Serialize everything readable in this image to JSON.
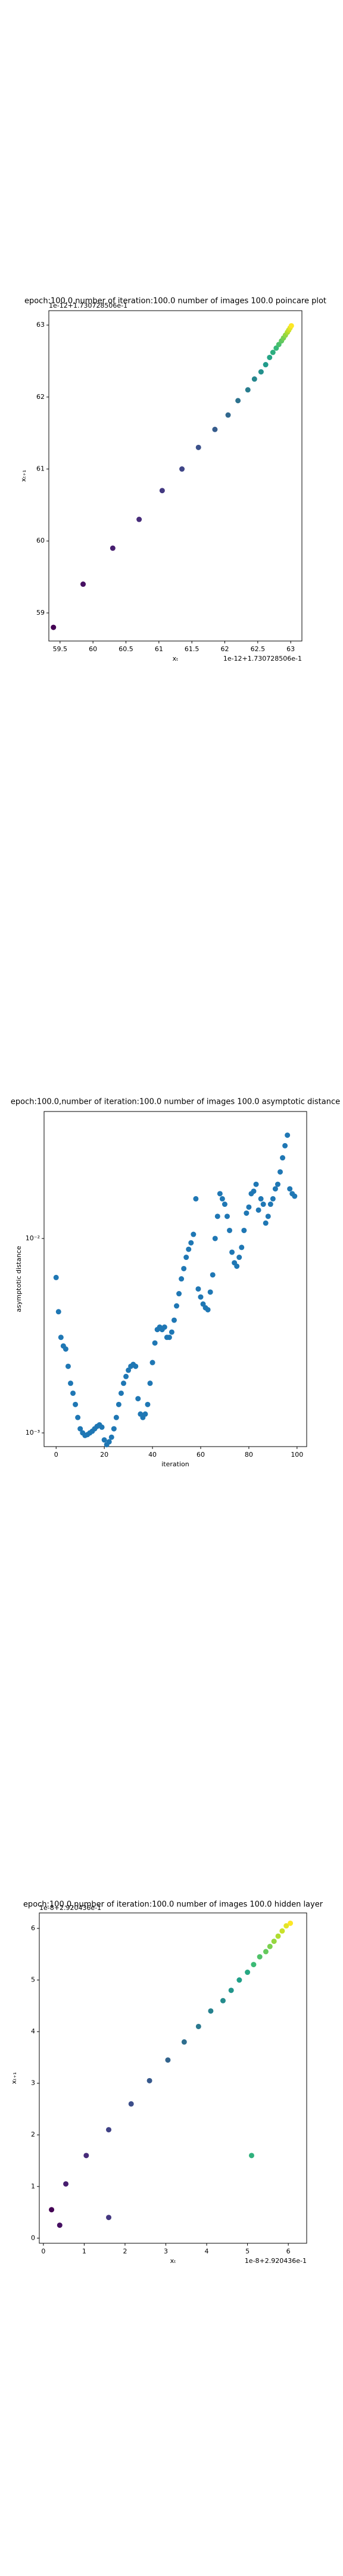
{
  "chart_data": [
    {
      "type": "scatter",
      "title": "epoch:100.0,number of iteration:100.0 number of images 100.0 poincare plot",
      "xlabel": "xₜ",
      "ylabel": "xₜ₊₁",
      "x_offset": "1e-12+1.730728506e-1",
      "y_offset": "1e-12+1.730728506e-1",
      "colormap": "viridis",
      "x": [
        59.4,
        59.85,
        60.3,
        60.7,
        61.05,
        61.35,
        61.6,
        61.85,
        62.05,
        62.2,
        62.35,
        62.45,
        62.55,
        62.62,
        62.68,
        62.73,
        62.78,
        62.82,
        62.86,
        62.89,
        62.92,
        62.95,
        62.97,
        62.99,
        63.01
      ],
      "values": [
        58.8,
        59.4,
        59.9,
        60.3,
        60.7,
        61.0,
        61.3,
        61.55,
        61.75,
        61.95,
        62.1,
        62.25,
        62.35,
        62.45,
        62.55,
        62.62,
        62.68,
        62.73,
        62.78,
        62.82,
        62.86,
        62.9,
        62.93,
        62.96,
        62.99
      ],
      "xlim": [
        59.33,
        63.17
      ],
      "ylim": [
        58.61,
        63.2
      ],
      "xticks": [
        59.5,
        60.0,
        60.5,
        61.0,
        61.5,
        62.0,
        62.5,
        63.0
      ],
      "yticks": [
        59,
        60,
        61,
        62,
        63
      ]
    },
    {
      "type": "scatter",
      "title": "epoch:100.0,number of iteration:100.0  number of images 100.0 asymptotic distance",
      "xlabel": "iteration",
      "ylabel": "asymptotic distance",
      "color": "#1f77b4",
      "ylog": true,
      "x": [
        0,
        1,
        2,
        3,
        4,
        5,
        6,
        7,
        8,
        9,
        10,
        11,
        12,
        13,
        14,
        15,
        16,
        17,
        18,
        19,
        20,
        21,
        22,
        23,
        24,
        25,
        26,
        27,
        28,
        29,
        30,
        31,
        32,
        33,
        34,
        35,
        36,
        37,
        38,
        39,
        40,
        41,
        42,
        43,
        44,
        45,
        46,
        47,
        48,
        49,
        50,
        51,
        52,
        53,
        54,
        55,
        56,
        57,
        58,
        59,
        60,
        61,
        62,
        63,
        64,
        65,
        66,
        67,
        68,
        69,
        70,
        71,
        72,
        73,
        74,
        75,
        76,
        77,
        78,
        79,
        80,
        81,
        82,
        83,
        84,
        85,
        86,
        87,
        88,
        89,
        90,
        91,
        92,
        93,
        94,
        95,
        96,
        97,
        98,
        99
      ],
      "values": [
        0.0063,
        0.0042,
        0.0031,
        0.0028,
        0.0027,
        0.0022,
        0.0018,
        0.0016,
        0.0014,
        0.0012,
        0.00105,
        0.001,
        0.00097,
        0.00098,
        0.001,
        0.00102,
        0.00105,
        0.00108,
        0.0011,
        0.00107,
        0.00092,
        0.00087,
        0.0009,
        0.00095,
        0.00105,
        0.0012,
        0.0014,
        0.0016,
        0.0018,
        0.00195,
        0.0021,
        0.0022,
        0.00225,
        0.0022,
        0.0015,
        0.00125,
        0.0012,
        0.00125,
        0.0014,
        0.0018,
        0.0023,
        0.0029,
        0.0034,
        0.0035,
        0.0034,
        0.0035,
        0.0031,
        0.0031,
        0.0033,
        0.0038,
        0.0045,
        0.0052,
        0.0062,
        0.007,
        0.008,
        0.0088,
        0.0095,
        0.0105,
        0.016,
        0.0055,
        0.005,
        0.0046,
        0.0044,
        0.0043,
        0.0053,
        0.0065,
        0.01,
        0.013,
        0.017,
        0.016,
        0.015,
        0.013,
        0.011,
        0.0085,
        0.0075,
        0.0072,
        0.008,
        0.009,
        0.011,
        0.0135,
        0.0145,
        0.017,
        0.0175,
        0.019,
        0.014,
        0.016,
        0.015,
        0.012,
        0.013,
        0.015,
        0.016,
        0.018,
        0.019,
        0.022,
        0.026,
        0.03,
        0.034,
        0.018,
        0.017,
        0.0165
      ],
      "xlim": [
        -5,
        104
      ],
      "ylim": [
        0.00085,
        0.045
      ],
      "xticks": [
        0,
        20,
        40,
        60,
        80,
        100
      ],
      "yticks": [
        {
          "value": 0.001,
          "label": "10⁻³"
        },
        {
          "value": 0.01,
          "label": "10⁻²"
        }
      ]
    },
    {
      "type": "scatter",
      "title": "epoch:100.0,number of iteration:100.0  number of images 100.0 hidden layer",
      "xlabel": "xₜ",
      "ylabel": "xₜ₊₁",
      "x_offset": "1e-8+2.920436e-1",
      "y_offset": "1e-8+2.920436e-1",
      "colormap": "viridis",
      "x": [
        0.2,
        0.4,
        0.55,
        1.05,
        1.6,
        1.6,
        2.15,
        2.6,
        3.05,
        3.45,
        3.8,
        4.1,
        4.4,
        4.6,
        4.8,
        5.0,
        5.1,
        5.15,
        5.3,
        5.45,
        5.55,
        5.65,
        5.75,
        5.85,
        5.95,
        6.05
      ],
      "values": [
        0.55,
        0.25,
        1.05,
        1.6,
        0.4,
        2.1,
        2.6,
        3.05,
        3.45,
        3.8,
        4.1,
        4.4,
        4.6,
        4.8,
        5.0,
        5.15,
        1.6,
        5.3,
        5.45,
        5.55,
        5.65,
        5.75,
        5.85,
        5.95,
        6.05,
        6.1
      ],
      "xlim": [
        -0.1,
        6.45
      ],
      "ylim": [
        -0.1,
        6.3
      ],
      "xticks": [
        0,
        1,
        2,
        3,
        4,
        5,
        6
      ],
      "yticks": [
        0,
        1,
        2,
        3,
        4,
        5,
        6
      ]
    }
  ]
}
